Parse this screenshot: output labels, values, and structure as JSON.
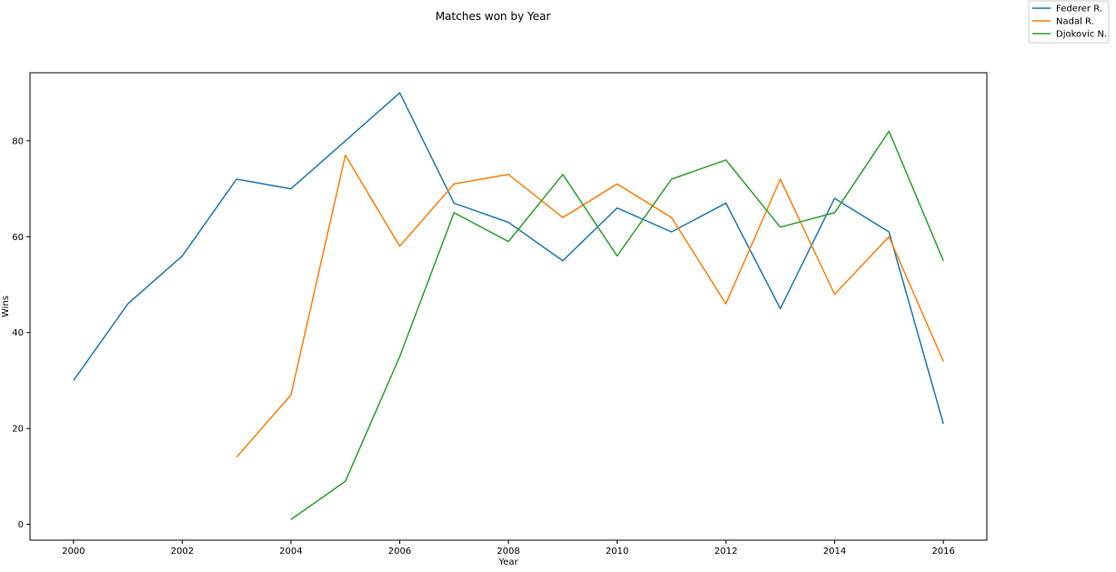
{
  "chart_data": {
    "type": "line",
    "title": "Matches won by Year",
    "xlabel": "Year",
    "ylabel": "Wins",
    "xlim": [
      1999.2,
      2016.8
    ],
    "ylim": [
      -3.3,
      94.2
    ],
    "xticks": [
      2000,
      2002,
      2004,
      2006,
      2008,
      2010,
      2012,
      2014,
      2016
    ],
    "yticks": [
      0,
      20,
      40,
      60,
      80
    ],
    "grid": false,
    "legend_position": "top-right",
    "series": [
      {
        "name": "Federer R.",
        "color": "#1f77b4",
        "x": [
          2000,
          2001,
          2002,
          2003,
          2004,
          2005,
          2006,
          2007,
          2008,
          2009,
          2010,
          2011,
          2012,
          2013,
          2014,
          2015,
          2016
        ],
        "y": [
          30,
          46,
          56,
          72,
          70,
          80,
          90,
          67,
          63,
          55,
          66,
          61,
          67,
          45,
          68,
          61,
          21
        ]
      },
      {
        "name": "Nadal R.",
        "color": "#ff7f0e",
        "x": [
          2003,
          2004,
          2005,
          2006,
          2007,
          2008,
          2009,
          2010,
          2011,
          2012,
          2013,
          2014,
          2015,
          2016
        ],
        "y": [
          14,
          27,
          77,
          58,
          71,
          73,
          64,
          71,
          64,
          46,
          72,
          48,
          60,
          34
        ]
      },
      {
        "name": "Djokovic N.",
        "color": "#2ca02c",
        "x": [
          2004,
          2005,
          2006,
          2007,
          2008,
          2009,
          2010,
          2011,
          2012,
          2013,
          2014,
          2015,
          2016
        ],
        "y": [
          1,
          9,
          35,
          65,
          59,
          73,
          56,
          72,
          76,
          62,
          65,
          82,
          55
        ]
      }
    ]
  }
}
